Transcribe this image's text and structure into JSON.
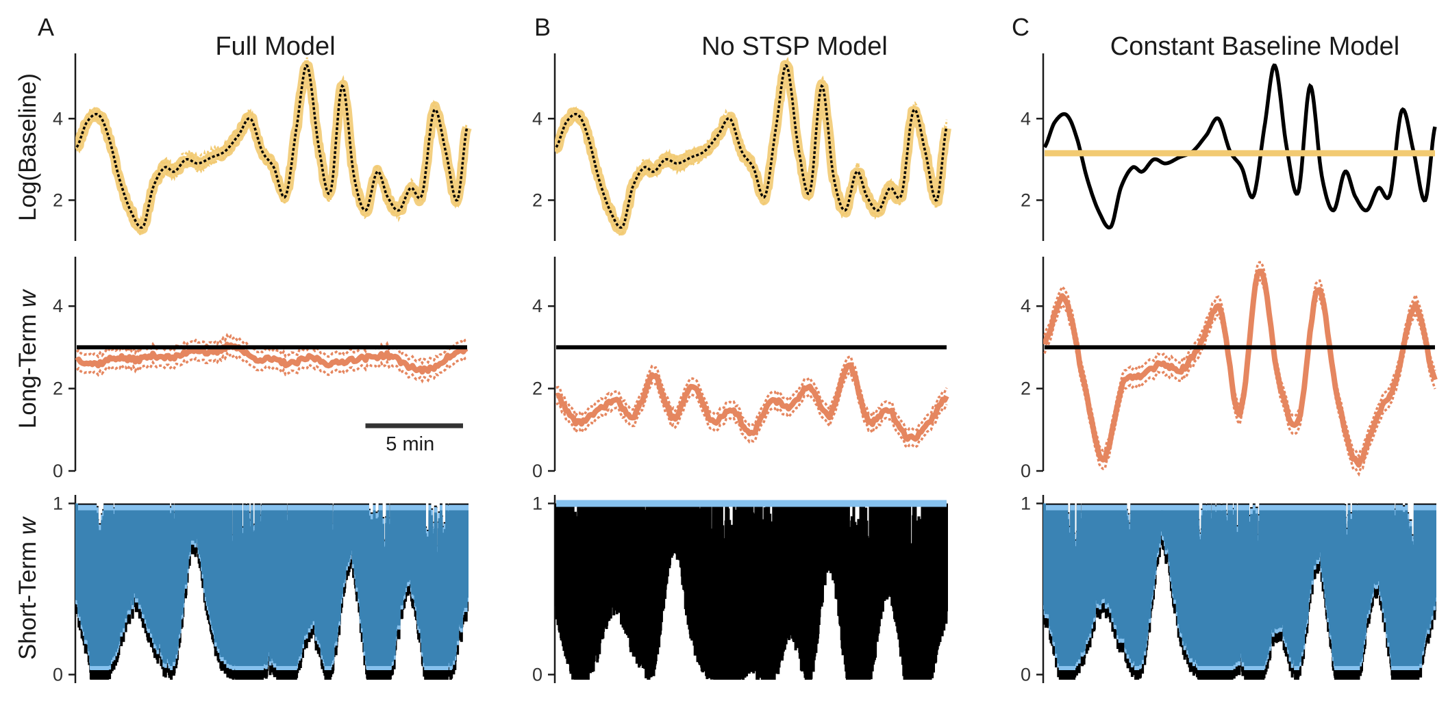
{
  "colors": {
    "truth": "#000000",
    "baseline_estimate": "#F2CA72",
    "longterm_estimate": "#E5865F",
    "shortterm_estimate_light": "#86C1EE",
    "shortterm_estimate_dark": "#3A83B4",
    "scalebar": "#333333"
  },
  "row_labels": {
    "baseline": "Log(Baseline)",
    "longterm_prefix": "Long-Term ",
    "longterm_var": "w",
    "shortterm_prefix": "Short-Term ",
    "shortterm_var": "w"
  },
  "panels": [
    {
      "letter": "A",
      "title": "Full Model"
    },
    {
      "letter": "B",
      "title": "No STSP Model"
    },
    {
      "letter": "C",
      "title": "Constant Baseline Model"
    }
  ],
  "scalebar": {
    "label": "5 min",
    "duration_min": 5
  },
  "chart_data": [
    {
      "panel": "A",
      "row": "Log(Baseline)",
      "type": "line",
      "x_range_min": [
        0,
        20
      ],
      "ylim": [
        1.0,
        5.6
      ],
      "yticks": [
        "2",
        "4"
      ],
      "series": [
        {
          "name": "",
          "role": "truth",
          "style": "solid-black"
        },
        {
          "name": "",
          "role": "estimate",
          "style": "yellow-band-dotted",
          "tracks_truth": true
        }
      ]
    },
    {
      "panel": "B",
      "row": "Log(Baseline)",
      "type": "line",
      "x_range_min": [
        0,
        20
      ],
      "ylim": [
        1.0,
        5.6
      ],
      "yticks": [
        "2",
        "4"
      ],
      "series": [
        {
          "name": "",
          "role": "truth",
          "style": "solid-black"
        },
        {
          "name": "",
          "role": "estimate",
          "style": "yellow-band-dotted",
          "tracks_truth": true
        }
      ]
    },
    {
      "panel": "C",
      "row": "Log(Baseline)",
      "type": "line",
      "x_range_min": [
        0,
        20
      ],
      "ylim": [
        1.0,
        5.6
      ],
      "yticks": [
        "2",
        "4"
      ],
      "series": [
        {
          "name": "",
          "role": "truth",
          "style": "solid-black"
        },
        {
          "name": "",
          "role": "estimate",
          "style": "yellow-flat",
          "constant_value": 3.15
        }
      ]
    },
    {
      "panel": "A",
      "row": "Long-Term w",
      "type": "line",
      "ylim": [
        0,
        5.2
      ],
      "yticks": [
        "0",
        "2",
        "4"
      ],
      "series": [
        {
          "name": "",
          "role": "truth",
          "constant_value": 3.0
        },
        {
          "name": "",
          "role": "estimate_mean",
          "x": [
            0,
            1,
            2,
            3,
            4,
            5,
            6,
            7,
            8,
            9,
            10,
            11,
            12,
            13,
            14,
            15,
            16,
            17,
            18,
            19,
            20
          ],
          "y": [
            2.7,
            2.6,
            2.75,
            2.7,
            2.8,
            2.75,
            2.95,
            2.85,
            3.05,
            2.75,
            2.7,
            2.6,
            2.75,
            2.6,
            2.7,
            2.75,
            2.8,
            2.55,
            2.45,
            2.75,
            2.95
          ]
        },
        {
          "name": "",
          "role": "ci_halfwidth",
          "value": 0.22
        }
      ]
    },
    {
      "panel": "B",
      "row": "Long-Term w",
      "type": "line",
      "ylim": [
        0,
        5.2
      ],
      "yticks": [
        "0",
        "2",
        "4"
      ],
      "series": [
        {
          "name": "",
          "role": "truth",
          "constant_value": 3.0
        },
        {
          "name": "",
          "role": "estimate_mean",
          "x": [
            0,
            1,
            2,
            3,
            4,
            5,
            6,
            7,
            8,
            9,
            10,
            11,
            12,
            13,
            14,
            15,
            16,
            17,
            18,
            19,
            20
          ],
          "y": [
            1.85,
            1.2,
            1.4,
            1.7,
            1.35,
            2.3,
            1.3,
            2.05,
            1.2,
            1.5,
            0.9,
            1.7,
            1.55,
            2.05,
            1.35,
            2.55,
            1.2,
            1.5,
            0.8,
            1.1,
            1.8
          ]
        },
        {
          "name": "",
          "role": "ci_halfwidth",
          "value": 0.2
        }
      ]
    },
    {
      "panel": "C",
      "row": "Long-Term w",
      "type": "line",
      "ylim": [
        0,
        5.2
      ],
      "yticks": [
        "0",
        "2",
        "4"
      ],
      "series": [
        {
          "name": "",
          "role": "truth",
          "constant_value": 3.0
        },
        {
          "name": "",
          "role": "estimate_mean",
          "x": [
            0,
            1,
            2,
            3,
            4,
            5,
            6,
            7,
            8,
            9,
            10,
            11,
            12,
            13,
            14,
            15,
            16,
            17,
            18,
            19,
            20
          ],
          "y": [
            3.1,
            4.2,
            2.2,
            0.3,
            2.1,
            2.3,
            2.6,
            2.45,
            3.1,
            3.9,
            1.4,
            4.9,
            2.2,
            1.2,
            4.4,
            1.8,
            0.2,
            1.3,
            2.2,
            4.0,
            2.2
          ]
        },
        {
          "name": "",
          "role": "ci_halfwidth",
          "value": 0.22
        }
      ]
    },
    {
      "panel": "A",
      "row": "Short-Term w",
      "type": "line",
      "ylim": [
        -0.05,
        1.05
      ],
      "yticks": [
        "0",
        "1"
      ],
      "series": [
        {
          "name": "",
          "role": "truth",
          "style": "black-fast-fluctuation"
        },
        {
          "name": "",
          "role": "estimate",
          "style": "blue-band",
          "tracks_truth": true
        }
      ]
    },
    {
      "panel": "B",
      "row": "Short-Term w",
      "type": "line",
      "ylim": [
        -0.05,
        1.05
      ],
      "yticks": [
        "0",
        "1"
      ],
      "series": [
        {
          "name": "",
          "role": "truth",
          "style": "black-fast-fluctuation"
        },
        {
          "name": "",
          "role": "estimate",
          "style": "blue-flat",
          "constant_value": 1.0
        }
      ]
    },
    {
      "panel": "C",
      "row": "Short-Term w",
      "type": "line",
      "ylim": [
        -0.05,
        1.05
      ],
      "yticks": [
        "0",
        "1"
      ],
      "series": [
        {
          "name": "",
          "role": "truth",
          "style": "black-fast-fluctuation"
        },
        {
          "name": "",
          "role": "estimate",
          "style": "blue-band",
          "tracks_truth": true
        }
      ]
    }
  ]
}
